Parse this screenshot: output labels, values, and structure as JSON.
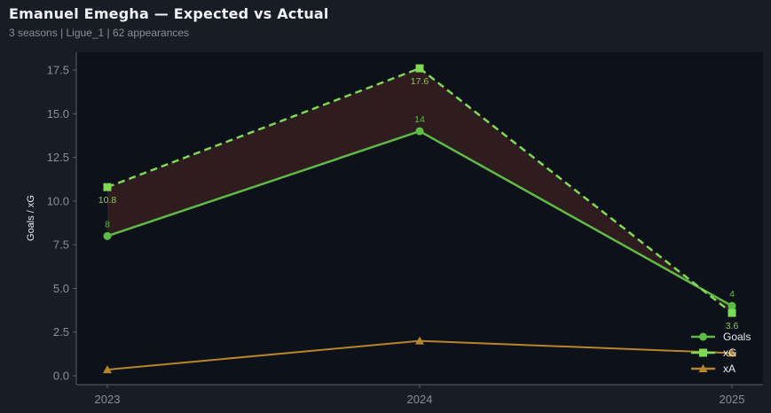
{
  "header": {
    "title": "Emanuel Emegha — Expected vs Actual",
    "subtitle": "3 seasons | Ligue_1 | 62 appearances"
  },
  "colors": {
    "background": "#181c24",
    "plot_background": "#0d1119",
    "goals": "#5dbb46",
    "xg": "#7ed957",
    "xa": "#b8862a",
    "shade": "#2e1c1e"
  },
  "chart_data": {
    "type": "line",
    "title": "Emanuel Emegha — Expected vs Actual",
    "subtitle": "3 seasons | Ligue_1 | 62 appearances",
    "xlabel": "",
    "ylabel": "Goals / xG",
    "categories": [
      "2023",
      "2024",
      "2025"
    ],
    "yticks": [
      "0.0",
      "2.5",
      "5.0",
      "7.5",
      "10.0",
      "12.5",
      "15.0",
      "17.5"
    ],
    "ylim": [
      -0.5,
      18.5
    ],
    "grid": false,
    "legend_position": "lower right",
    "series": [
      {
        "name": "Goals",
        "values": [
          8,
          14,
          4
        ],
        "labels": [
          "8",
          "14",
          "4"
        ],
        "style": "solid",
        "marker": "circle"
      },
      {
        "name": "xG",
        "values": [
          10.8,
          17.6,
          3.6
        ],
        "labels": [
          "10.8",
          "17.6",
          "3.6"
        ],
        "style": "dashed",
        "marker": "square"
      },
      {
        "name": "xA",
        "values": [
          0.35,
          2.0,
          1.3
        ],
        "style": "solid",
        "marker": "triangle"
      }
    ],
    "shaded_region": "between Goals and xG"
  }
}
